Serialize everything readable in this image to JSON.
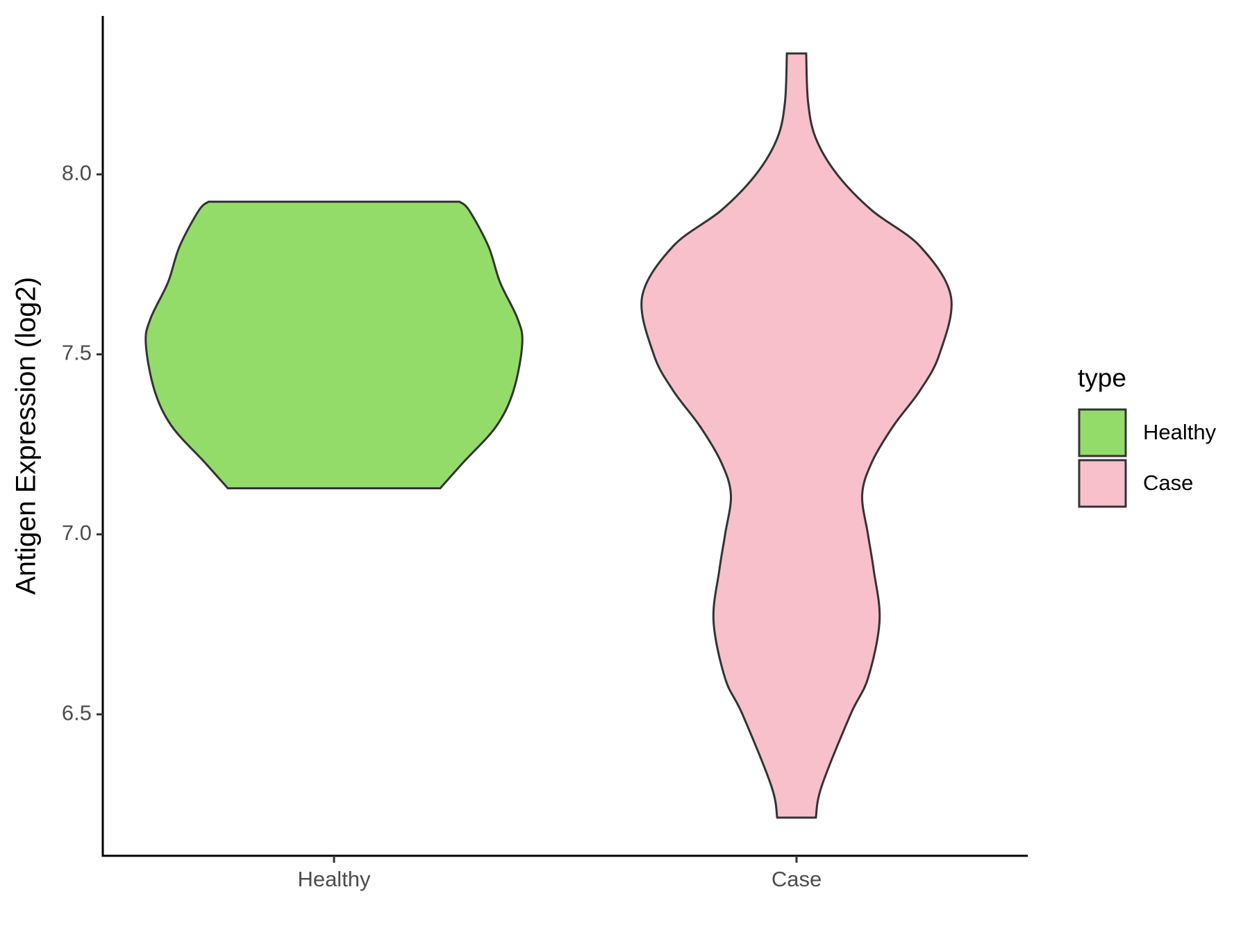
{
  "chart_data": {
    "type": "violin",
    "y_label": "Antigen Expression (log2)",
    "categories": [
      "Healthy",
      "Case"
    ],
    "legend_title": "type",
    "legend_position": "right",
    "series": [
      {
        "name": "Healthy",
        "color": "#93dc6a",
        "y": [
          7.128,
          7.2,
          7.3,
          7.4,
          7.53,
          7.6,
          7.7,
          7.8,
          7.9,
          7.924
        ],
        "density": [
          0.55,
          0.67,
          0.84,
          0.93,
          0.975,
          0.95,
          0.86,
          0.8,
          0.7,
          0.65
        ]
      },
      {
        "name": "Case",
        "color": "#f7c0cb",
        "y": [
          6.213,
          6.3,
          6.5,
          6.6,
          6.76,
          6.9,
          7.0,
          7.11,
          7.2,
          7.3,
          7.4,
          7.5,
          7.66,
          7.8,
          7.9,
          8.0,
          8.1,
          8.2,
          8.336
        ],
        "density": [
          0.1,
          0.13,
          0.28,
          0.37,
          0.43,
          0.4,
          0.37,
          0.34,
          0.39,
          0.5,
          0.64,
          0.74,
          0.8,
          0.64,
          0.39,
          0.21,
          0.1,
          0.06,
          0.05
        ]
      }
    ],
    "ylim": [
      6.107,
      8.44
    ],
    "yticks": [
      {
        "value": 6.5,
        "label": "6.5"
      },
      {
        "value": 7,
        "label": "7.0"
      },
      {
        "value": 7.5,
        "label": "7.5"
      },
      {
        "value": 8,
        "label": "8.0"
      }
    ]
  }
}
